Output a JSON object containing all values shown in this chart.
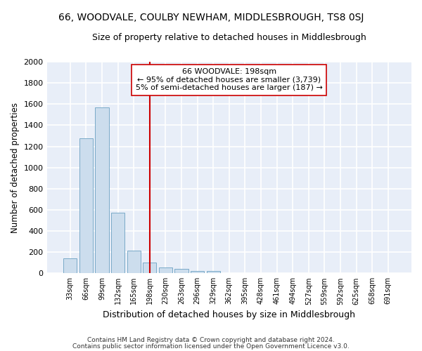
{
  "title": "66, WOODVALE, COULBY NEWHAM, MIDDLESBROUGH, TS8 0SJ",
  "subtitle": "Size of property relative to detached houses in Middlesbrough",
  "xlabel": "Distribution of detached houses by size in Middlesbrough",
  "ylabel": "Number of detached properties",
  "bar_labels": [
    "33sqm",
    "66sqm",
    "99sqm",
    "132sqm",
    "165sqm",
    "198sqm",
    "230sqm",
    "263sqm",
    "296sqm",
    "329sqm",
    "362sqm",
    "395sqm",
    "428sqm",
    "461sqm",
    "494sqm",
    "527sqm",
    "559sqm",
    "592sqm",
    "625sqm",
    "658sqm",
    "691sqm"
  ],
  "bar_heights": [
    140,
    1280,
    1570,
    570,
    215,
    100,
    55,
    45,
    25,
    20,
    0,
    0,
    0,
    0,
    0,
    0,
    0,
    0,
    0,
    0,
    0
  ],
  "bar_color": "#ccdded",
  "bar_edge_color": "#7aaac8",
  "background_color": "#e8eef8",
  "grid_color": "#ffffff",
  "vline_x": 5.0,
  "vline_color": "#cc0000",
  "annotation_title": "66 WOODVALE: 198sqm",
  "annotation_line1": "← 95% of detached houses are smaller (3,739)",
  "annotation_line2": "5% of semi-detached houses are larger (187) →",
  "ylim": [
    0,
    2000
  ],
  "yticks": [
    0,
    200,
    400,
    600,
    800,
    1000,
    1200,
    1400,
    1600,
    1800,
    2000
  ],
  "footnote1": "Contains HM Land Registry data © Crown copyright and database right 2024.",
  "footnote2": "Contains public sector information licensed under the Open Government Licence v3.0."
}
